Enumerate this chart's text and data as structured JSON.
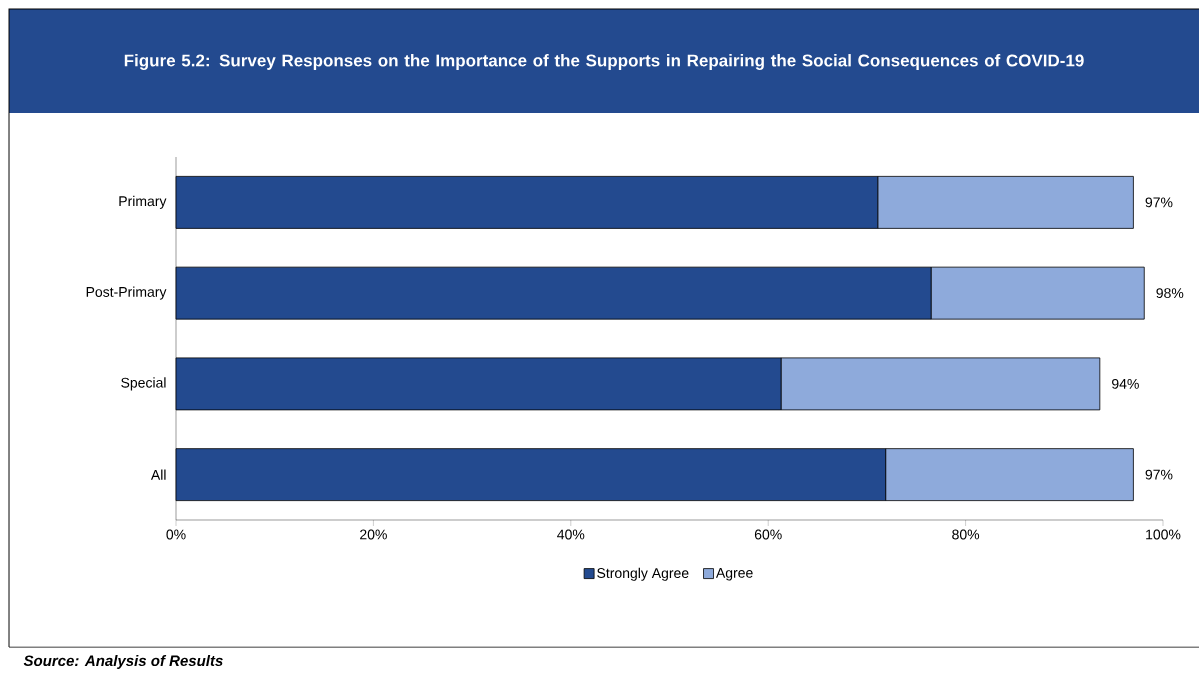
{
  "chart_data": {
    "type": "bar",
    "orientation": "horizontal",
    "stacked": true,
    "title": "Figure 5.2: Survey Responses on the Importance of the Supports in Repairing the Social Consequences of COVID-19",
    "annotations": [
      "Source: Analysis of Results"
    ],
    "categories": [
      "Primary",
      "Post-Primary",
      "Special",
      "All"
    ],
    "series": [
      {
        "name": "Strongly Agree",
        "color": "#234a8f",
        "values": [
          71.1,
          76.5,
          61.3,
          71.9
        ]
      },
      {
        "name": "Agree",
        "color": "#8eaadb",
        "values": [
          25.9,
          21.6,
          32.3,
          25.1
        ]
      }
    ],
    "totals": [
      "97%",
      "98%",
      "94%",
      "97%"
    ],
    "xlim": [
      0,
      100
    ],
    "xticks": [
      {
        "value": 0,
        "label": "0%"
      },
      {
        "value": 20,
        "label": "20%"
      },
      {
        "value": 40,
        "label": "40%"
      },
      {
        "value": 60,
        "label": "60%"
      },
      {
        "value": 80,
        "label": "80%"
      },
      {
        "value": 100,
        "label": "100%"
      }
    ],
    "legend": "bottom"
  }
}
